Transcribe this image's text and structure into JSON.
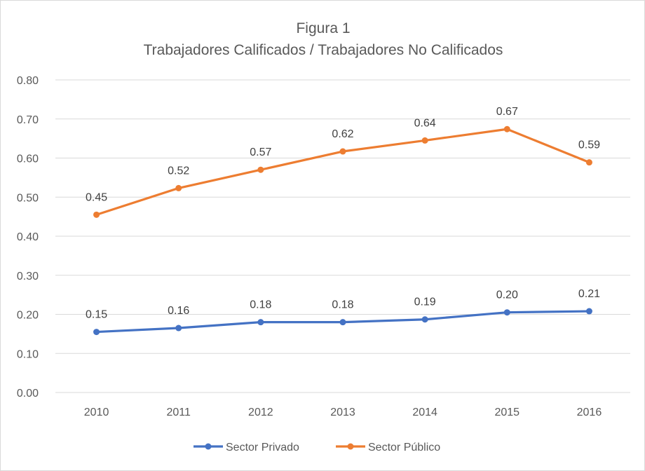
{
  "chart_data": {
    "type": "line",
    "title": "Figura 1",
    "subtitle": "Trabajadores Calificados / Trabajadores  No Calificados",
    "categories": [
      "2010",
      "2011",
      "2012",
      "2013",
      "2014",
      "2015",
      "2016"
    ],
    "ylim": [
      0,
      0.8
    ],
    "yticks": [
      "0.00",
      "0.10",
      "0.20",
      "0.30",
      "0.40",
      "0.50",
      "0.60",
      "0.70",
      "0.80"
    ],
    "grid": true,
    "legend_position": "bottom",
    "series": [
      {
        "name": "Sector Privado",
        "color": "#4472C4",
        "values": [
          0.155,
          0.165,
          0.18,
          0.18,
          0.187,
          0.205,
          0.208
        ],
        "labels": [
          "0.15",
          "0.16",
          "0.18",
          "0.18",
          "0.19",
          "0.20",
          "0.21"
        ]
      },
      {
        "name": "Sector Público",
        "color": "#ED7D31",
        "values": [
          0.455,
          0.523,
          0.57,
          0.617,
          0.645,
          0.674,
          0.589
        ],
        "labels": [
          "0.45",
          "0.52",
          "0.57",
          "0.62",
          "0.64",
          "0.67",
          "0.59"
        ]
      }
    ]
  }
}
